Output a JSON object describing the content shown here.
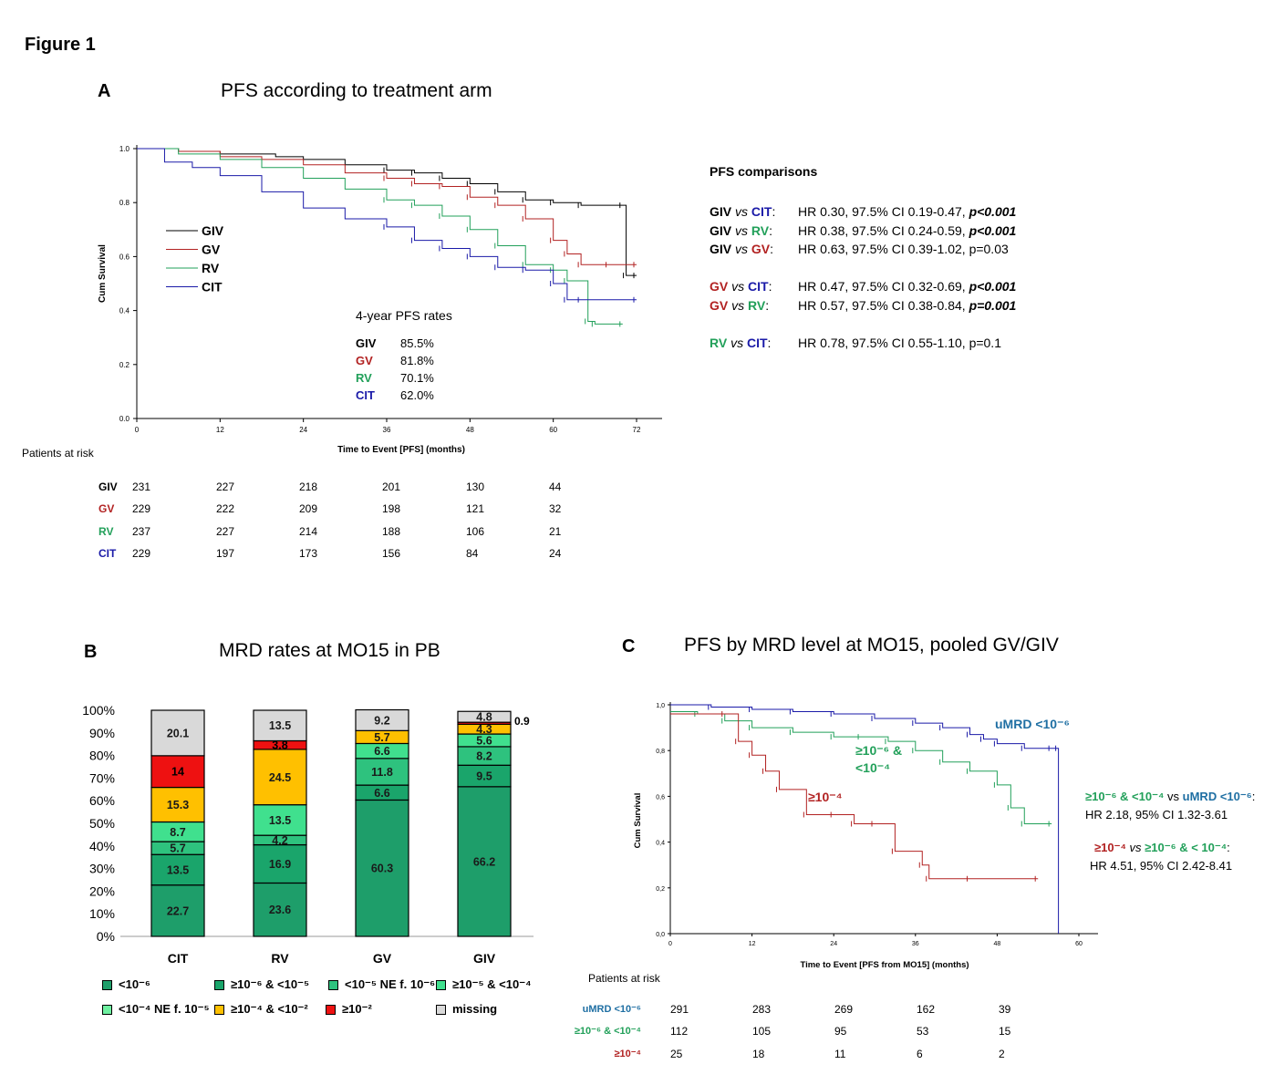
{
  "figure_label": "Figure 1",
  "colors": {
    "GIV": "#000000",
    "GV": "#b22222",
    "RV": "#22a05a",
    "CIT": "#1a1aa8",
    "teal": "#1f6fa3",
    "lt_1e6": "#1e9e6a",
    "ge1e6_lt1e5": "#1aa56b",
    "lt1e5": "#2ec27e",
    "ge1e5_lt1e4": "#40e08e",
    "lt1e4": "#6ef0a0",
    "ge1e4_lt1e2": "#ffc000",
    "ge1e2": "#ee1111",
    "missing": "#d9d9d9"
  },
  "panelA": {
    "letter": "A",
    "title": "PFS according to treatment arm",
    "legend": [
      "GIV",
      "GV",
      "RV",
      "CIT"
    ],
    "rates_title": "4-year PFS rates",
    "rates": [
      [
        "GIV",
        "85.5%"
      ],
      [
        "GV",
        "81.8%"
      ],
      [
        "RV",
        "70.1%"
      ],
      [
        "CIT",
        "62.0%"
      ]
    ],
    "comparisons_title": "PFS comparisons",
    "comparisons": [
      {
        "a": "GIV",
        "b": "CIT",
        "text": "HR 0.30, 97.5% CI 0.19-0.47, ",
        "p": "p<0.001",
        "bold_p": true
      },
      {
        "a": "GIV",
        "b": "RV",
        "text": "HR 0.38, 97.5% CI 0.24-0.59, ",
        "p": "p<0.001",
        "bold_p": true
      },
      {
        "a": "GIV",
        "b": "GV",
        "text": "HR 0.63, 97.5% CI 0.39-1.02, ",
        "p": "p=0.03",
        "bold_p": false
      },
      {
        "a": "GV",
        "b": "CIT",
        "text": "HR 0.47, 97.5% CI 0.32-0.69, ",
        "p": "p<0.001",
        "bold_p": true
      },
      {
        "a": "GV",
        "b": "RV",
        "text": "HR 0.57, 97.5% CI 0.38-0.84, ",
        "p": "p=0.001",
        "bold_p": true
      },
      {
        "a": "RV",
        "b": "CIT",
        "text": "HR 0.78, 97.5% CI 0.55-1.10, ",
        "p": "p=0.1",
        "bold_p": false
      }
    ],
    "vs": "vs",
    "risk_title": "Patients at risk",
    "risk": [
      {
        "label": "GIV",
        "values": [
          "231",
          "227",
          "218",
          "201",
          "130",
          "44"
        ]
      },
      {
        "label": "GV",
        "values": [
          "229",
          "222",
          "209",
          "198",
          "121",
          "32"
        ]
      },
      {
        "label": "RV",
        "values": [
          "237",
          "227",
          "214",
          "188",
          "106",
          "21"
        ]
      },
      {
        "label": "CIT",
        "values": [
          "229",
          "197",
          "173",
          "156",
          "84",
          "24"
        ]
      }
    ]
  },
  "panelB": {
    "letter": "B",
    "title": "MRD rates at MO15 in PB",
    "extra_label": "0.9",
    "legend": [
      {
        "key": "lt_1e6",
        "label": "<10⁻⁶"
      },
      {
        "key": "ge1e6_lt1e5",
        "label": "≥10⁻⁶ & <10⁻⁵"
      },
      {
        "key": "lt1e5",
        "label": "<10⁻⁵ NE f. 10⁻⁶"
      },
      {
        "key": "ge1e5_lt1e4",
        "label": "≥10⁻⁵ & <10⁻⁴"
      },
      {
        "key": "lt1e4",
        "label": "<10⁻⁴ NE f. 10⁻⁵"
      },
      {
        "key": "ge1e4_lt1e2",
        "label": "≥10⁻⁴ & <10⁻²"
      },
      {
        "key": "ge1e2",
        "label": "≥10⁻²"
      },
      {
        "key": "missing",
        "label": "missing"
      }
    ]
  },
  "panelC": {
    "letter": "C",
    "title": "PFS by MRD level at MO15, pooled GV/GIV",
    "label_umrd": "uMRD <10⁻⁶",
    "label_mid": "≥10⁻⁶ &",
    "label_mid2": "<10⁻⁴",
    "label_high": "≥10⁻⁴",
    "hr1": {
      "a": "≥10⁻⁶ & <10⁻⁴",
      "vs": "vs",
      "b": "uMRD <10⁻⁶",
      "suffix": ":",
      "text": "HR 2.18, 95% CI 1.32-3.61"
    },
    "hr2": {
      "a": "≥10⁻⁴",
      "vs": "vs",
      "b": "≥10⁻⁶ & < 10⁻⁴",
      "suffix": ":",
      "text": "HR 4.51, 95% CI 2.42-8.41"
    },
    "risk_title": "Patients at risk",
    "risk": [
      {
        "label": "uMRD <10⁻⁶",
        "values": [
          "291",
          "283",
          "269",
          "162",
          "39"
        ]
      },
      {
        "label": "≥10⁻⁶ & <10⁻⁴",
        "values": [
          "112",
          "105",
          "95",
          "53",
          "15"
        ]
      },
      {
        "label": "≥10⁻⁴",
        "values": [
          "25",
          "18",
          "11",
          "6",
          "2"
        ]
      }
    ]
  },
  "chart_data": [
    {
      "type": "line",
      "title": "PFS according to treatment arm",
      "xlabel": "Time to Event [PFS] (months)",
      "ylabel": "Cum Survival",
      "xlim": [
        0,
        72
      ],
      "ylim": [
        0,
        1.0
      ],
      "xticks": [
        "0",
        "12",
        "24",
        "36",
        "48",
        "60",
        "72"
      ],
      "yticks": [
        "0.0",
        "0.2",
        "0.4",
        "0.6",
        "0.8",
        "1.0"
      ],
      "series": [
        {
          "name": "GIV",
          "x": [
            0,
            6,
            12,
            20,
            24,
            30,
            36,
            40,
            44,
            48,
            52,
            56,
            60,
            64,
            70,
            70.5,
            72
          ],
          "y": [
            1.0,
            0.99,
            0.98,
            0.97,
            0.96,
            0.94,
            0.92,
            0.91,
            0.89,
            0.87,
            0.84,
            0.81,
            0.8,
            0.79,
            0.79,
            0.53,
            0.53
          ]
        },
        {
          "name": "GV",
          "x": [
            0,
            6,
            12,
            18,
            24,
            30,
            36,
            40,
            44,
            48,
            52,
            56,
            60,
            62,
            64,
            68,
            72
          ],
          "y": [
            1.0,
            0.99,
            0.97,
            0.96,
            0.94,
            0.91,
            0.89,
            0.87,
            0.86,
            0.82,
            0.79,
            0.74,
            0.66,
            0.61,
            0.57,
            0.57,
            0.57
          ]
        },
        {
          "name": "RV",
          "x": [
            0,
            6,
            12,
            18,
            24,
            30,
            36,
            40,
            44,
            48,
            52,
            56,
            60,
            62,
            65,
            66,
            70
          ],
          "y": [
            1.0,
            0.98,
            0.96,
            0.93,
            0.89,
            0.85,
            0.81,
            0.79,
            0.75,
            0.7,
            0.64,
            0.57,
            0.55,
            0.51,
            0.36,
            0.35,
            0.35
          ]
        },
        {
          "name": "CIT",
          "x": [
            0,
            4,
            8,
            12,
            18,
            24,
            30,
            36,
            40,
            44,
            48,
            52,
            56,
            60,
            62,
            64,
            72
          ],
          "y": [
            1.0,
            0.95,
            0.93,
            0.9,
            0.84,
            0.78,
            0.74,
            0.71,
            0.66,
            0.63,
            0.6,
            0.56,
            0.55,
            0.5,
            0.44,
            0.44,
            0.44
          ]
        }
      ]
    },
    {
      "type": "bar",
      "title": "MRD rates at MO15 in PB",
      "categories": [
        "CIT",
        "RV",
        "GV",
        "GIV"
      ],
      "ylim": [
        0,
        100
      ],
      "yticks": [
        "0%",
        "10%",
        "20%",
        "30%",
        "40%",
        "50%",
        "60%",
        "70%",
        "80%",
        "90%",
        "100%"
      ],
      "series": [
        {
          "name": "<10⁻⁶",
          "key": "lt_1e6",
          "values": [
            22.7,
            23.6,
            60.3,
            66.2
          ]
        },
        {
          "name": "≥10⁻⁶ & <10⁻⁵",
          "key": "ge1e6_lt1e5",
          "values": [
            13.5,
            16.9,
            6.6,
            9.5
          ]
        },
        {
          "name": "<10⁻⁵ NE f. 10⁻⁶",
          "key": "lt1e5",
          "values": [
            5.7,
            4.2,
            11.8,
            8.2
          ]
        },
        {
          "name": "≥10⁻⁵ & <10⁻⁴",
          "key": "ge1e5_lt1e4",
          "values": [
            8.7,
            13.5,
            6.6,
            5.6
          ]
        },
        {
          "name": "<10⁻⁴ NE f. 10⁻⁵",
          "key": "lt1e4",
          "values": [
            0,
            0,
            0,
            0
          ]
        },
        {
          "name": "≥10⁻⁴ & <10⁻²",
          "key": "ge1e4_lt1e2",
          "values": [
            15.3,
            24.5,
            5.7,
            4.3
          ]
        },
        {
          "name": "≥10⁻²",
          "key": "ge1e2",
          "values": [
            14.0,
            3.8,
            0,
            0.9
          ]
        },
        {
          "name": "missing",
          "key": "missing",
          "values": [
            20.1,
            13.5,
            9.2,
            4.8
          ]
        }
      ]
    },
    {
      "type": "line",
      "title": "PFS by MRD level at MO15, pooled GV/GIV",
      "xlabel": "Time to Event [PFS from MO15] (months)",
      "ylabel": "Cum Survival",
      "xlim": [
        0,
        60
      ],
      "ylim": [
        0,
        1.0
      ],
      "xticks": [
        "0",
        "12",
        "24",
        "36",
        "48",
        "60"
      ],
      "yticks": [
        "0,0",
        "0,2",
        "0,4",
        "0,6",
        "0,8",
        "1,0"
      ],
      "series": [
        {
          "name": "uMRD <10⁻⁶",
          "x": [
            0,
            6,
            12,
            18,
            24,
            30,
            36,
            40,
            44,
            46,
            48,
            52,
            56,
            57,
            57
          ],
          "y": [
            1.0,
            0.99,
            0.98,
            0.97,
            0.96,
            0.94,
            0.92,
            0.9,
            0.87,
            0.85,
            0.83,
            0.81,
            0.81,
            0.81,
            0.0
          ]
        },
        {
          "name": "≥10⁻⁶ & <10⁻⁴",
          "x": [
            0,
            4,
            8,
            12,
            18,
            24,
            28,
            32,
            36,
            40,
            44,
            48,
            50,
            52,
            56
          ],
          "y": [
            0.97,
            0.96,
            0.93,
            0.9,
            0.88,
            0.86,
            0.86,
            0.84,
            0.8,
            0.75,
            0.71,
            0.65,
            0.55,
            0.48,
            0.48
          ]
        },
        {
          "name": "≥10⁻⁴",
          "x": [
            0,
            8,
            10,
            12,
            14,
            16,
            20,
            24,
            27,
            30,
            33,
            37,
            38,
            44,
            54
          ],
          "y": [
            0.96,
            0.96,
            0.84,
            0.78,
            0.71,
            0.63,
            0.52,
            0.52,
            0.48,
            0.48,
            0.36,
            0.3,
            0.24,
            0.24,
            0.24
          ]
        }
      ]
    }
  ]
}
